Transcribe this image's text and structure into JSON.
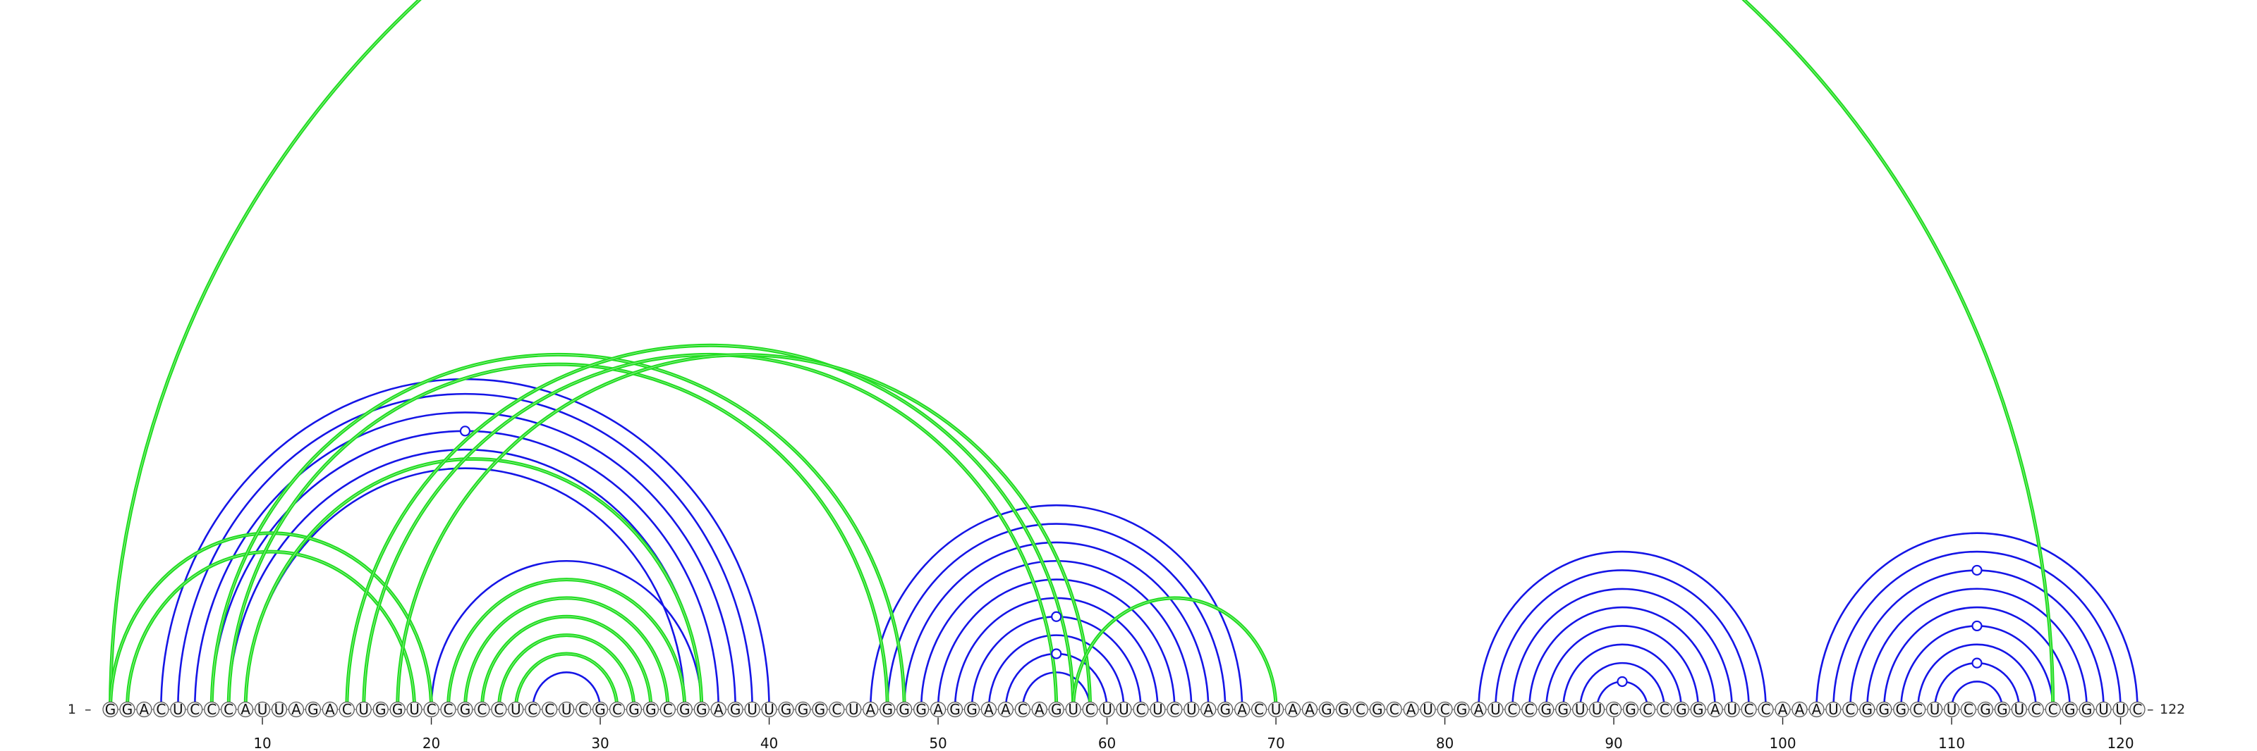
{
  "diagram": {
    "type": "rna-arc-diagram",
    "sequence": "GGACUCCCAUUAGACUGGUCCGCCUCCUCGCGGCGGAGUUGGGCUAGGGAGGAACAGUCUUCUCUAGACUAAGGCGCAUCGAUCCGGUUCGCCGGAUCCAAAUCGGGCUUCGGUCCGGUUC",
    "start_label": "1",
    "end_label": "122",
    "ticks": [
      10,
      20,
      30,
      40,
      50,
      60,
      70,
      80,
      90,
      100,
      110,
      120
    ],
    "colors": {
      "primary": "#1515e6",
      "alternate": "#22dd22",
      "outline": "#555555"
    },
    "arcs": [
      {
        "set": "primary",
        "pairs": [
          [
            4,
            40
          ],
          [
            5,
            39
          ],
          [
            6,
            38
          ],
          [
            7,
            37
          ],
          [
            8,
            36
          ],
          [
            9,
            35
          ]
        ]
      },
      {
        "set": "primary",
        "pairs": [
          [
            20,
            36
          ],
          [
            21,
            35
          ],
          [
            22,
            34
          ],
          [
            23,
            33
          ],
          [
            24,
            32
          ],
          [
            25,
            31
          ],
          [
            26,
            30
          ]
        ]
      },
      {
        "set": "primary",
        "pairs": [
          [
            46,
            68
          ],
          [
            47,
            67
          ],
          [
            48,
            66
          ],
          [
            49,
            65
          ],
          [
            50,
            64
          ],
          [
            51,
            63
          ],
          [
            52,
            62
          ],
          [
            53,
            61
          ],
          [
            54,
            60
          ],
          [
            55,
            59
          ]
        ]
      },
      {
        "set": "primary",
        "pairs": [
          [
            82,
            99
          ],
          [
            83,
            98
          ],
          [
            84,
            97
          ],
          [
            85,
            96
          ],
          [
            86,
            95
          ],
          [
            87,
            94
          ],
          [
            88,
            93
          ],
          [
            89,
            92
          ]
        ]
      },
      {
        "set": "primary",
        "pairs": [
          [
            102,
            121
          ],
          [
            103,
            120
          ],
          [
            104,
            119
          ],
          [
            105,
            118
          ],
          [
            106,
            117
          ],
          [
            107,
            116
          ],
          [
            108,
            115
          ],
          [
            109,
            114
          ],
          [
            110,
            113
          ]
        ]
      },
      {
        "set": "alternate",
        "pairs": [
          [
            1,
            116
          ],
          [
            1,
            20
          ],
          [
            2,
            19
          ],
          [
            7,
            48
          ],
          [
            8,
            47
          ],
          [
            9,
            36
          ],
          [
            15,
            58
          ],
          [
            16,
            57
          ],
          [
            18,
            59
          ],
          [
            21,
            35
          ],
          [
            22,
            34
          ],
          [
            23,
            33
          ],
          [
            24,
            32
          ],
          [
            25,
            31
          ],
          [
            58,
            70
          ]
        ]
      }
    ],
    "markers": [
      {
        "pair": [
          7,
          37
        ]
      },
      {
        "pair": [
          52,
          62
        ]
      },
      {
        "pair": [
          54,
          60
        ]
      },
      {
        "pair": [
          89,
          92
        ]
      },
      {
        "pair": [
          104,
          119
        ]
      },
      {
        "pair": [
          107,
          116
        ]
      },
      {
        "pair": [
          109,
          114
        ]
      }
    ]
  }
}
